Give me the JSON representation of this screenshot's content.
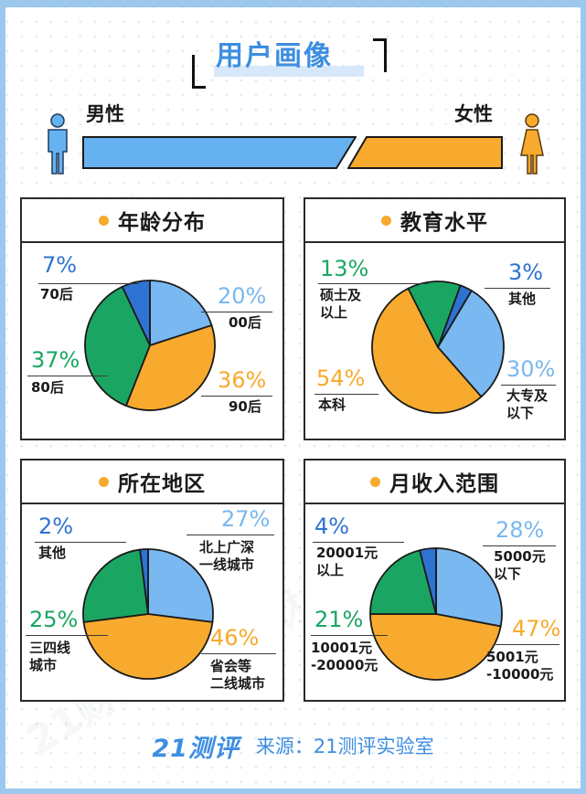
{
  "title": "用户画像",
  "gender": {
    "male_label": "男性",
    "female_label": "女性"
  },
  "colors": {
    "light_blue": "#79b8f0",
    "dark_blue": "#2e72d2",
    "green": "#1aa662",
    "orange": "#f7aa2d",
    "male_bar": "#66b2f1",
    "female_bar": "#f7aa2d",
    "accent_text_blue": "#3d8ee0"
  },
  "chart_data": [
    {
      "type": "pie",
      "title": "年龄分布",
      "slices": [
        {
          "label": "00后",
          "value": 20,
          "pct_text": "20%",
          "color": "#79b8f0"
        },
        {
          "label": "90后",
          "value": 36,
          "pct_text": "36%",
          "color": "#f7aa2d"
        },
        {
          "label": "80后",
          "value": 37,
          "pct_text": "37%",
          "color": "#1aa662"
        },
        {
          "label": "70后",
          "value": 7,
          "pct_text": "7%",
          "color": "#2e72d2"
        }
      ]
    },
    {
      "type": "pie",
      "title": "教育水平",
      "slices": [
        {
          "label": "其他",
          "value": 3,
          "pct_text": "3%",
          "color": "#2e72d2"
        },
        {
          "label": "大专及\n以下",
          "value": 30,
          "pct_text": "30%",
          "color": "#79b8f0"
        },
        {
          "label": "本科",
          "value": 54,
          "pct_text": "54%",
          "color": "#f7aa2d"
        },
        {
          "label": "硕士及\n以上",
          "value": 13,
          "pct_text": "13%",
          "color": "#1aa662"
        }
      ]
    },
    {
      "type": "pie",
      "title": "所在地区",
      "slices": [
        {
          "label": "北上广深\n一线城市",
          "value": 27,
          "pct_text": "27%",
          "color": "#79b8f0"
        },
        {
          "label": "省会等\n二线城市",
          "value": 46,
          "pct_text": "46%",
          "color": "#f7aa2d"
        },
        {
          "label": "三四线\n城市",
          "value": 25,
          "pct_text": "25%",
          "color": "#1aa662"
        },
        {
          "label": "其他",
          "value": 2,
          "pct_text": "2%",
          "color": "#2e72d2"
        }
      ]
    },
    {
      "type": "pie",
      "title": "月收入范围",
      "slices": [
        {
          "label": "5000元\n以下",
          "value": 28,
          "pct_text": "28%",
          "color": "#79b8f0"
        },
        {
          "label": "5001元\n-10000元",
          "value": 47,
          "pct_text": "47%",
          "color": "#f7aa2d"
        },
        {
          "label": "10001元\n-20000元",
          "value": 21,
          "pct_text": "21%",
          "color": "#1aa662"
        },
        {
          "label": "20001元\n以上",
          "value": 4,
          "pct_text": "4%",
          "color": "#2e72d2"
        }
      ]
    }
  ],
  "footer": {
    "brand": "21测评",
    "source": "来源：21测评实验室"
  }
}
